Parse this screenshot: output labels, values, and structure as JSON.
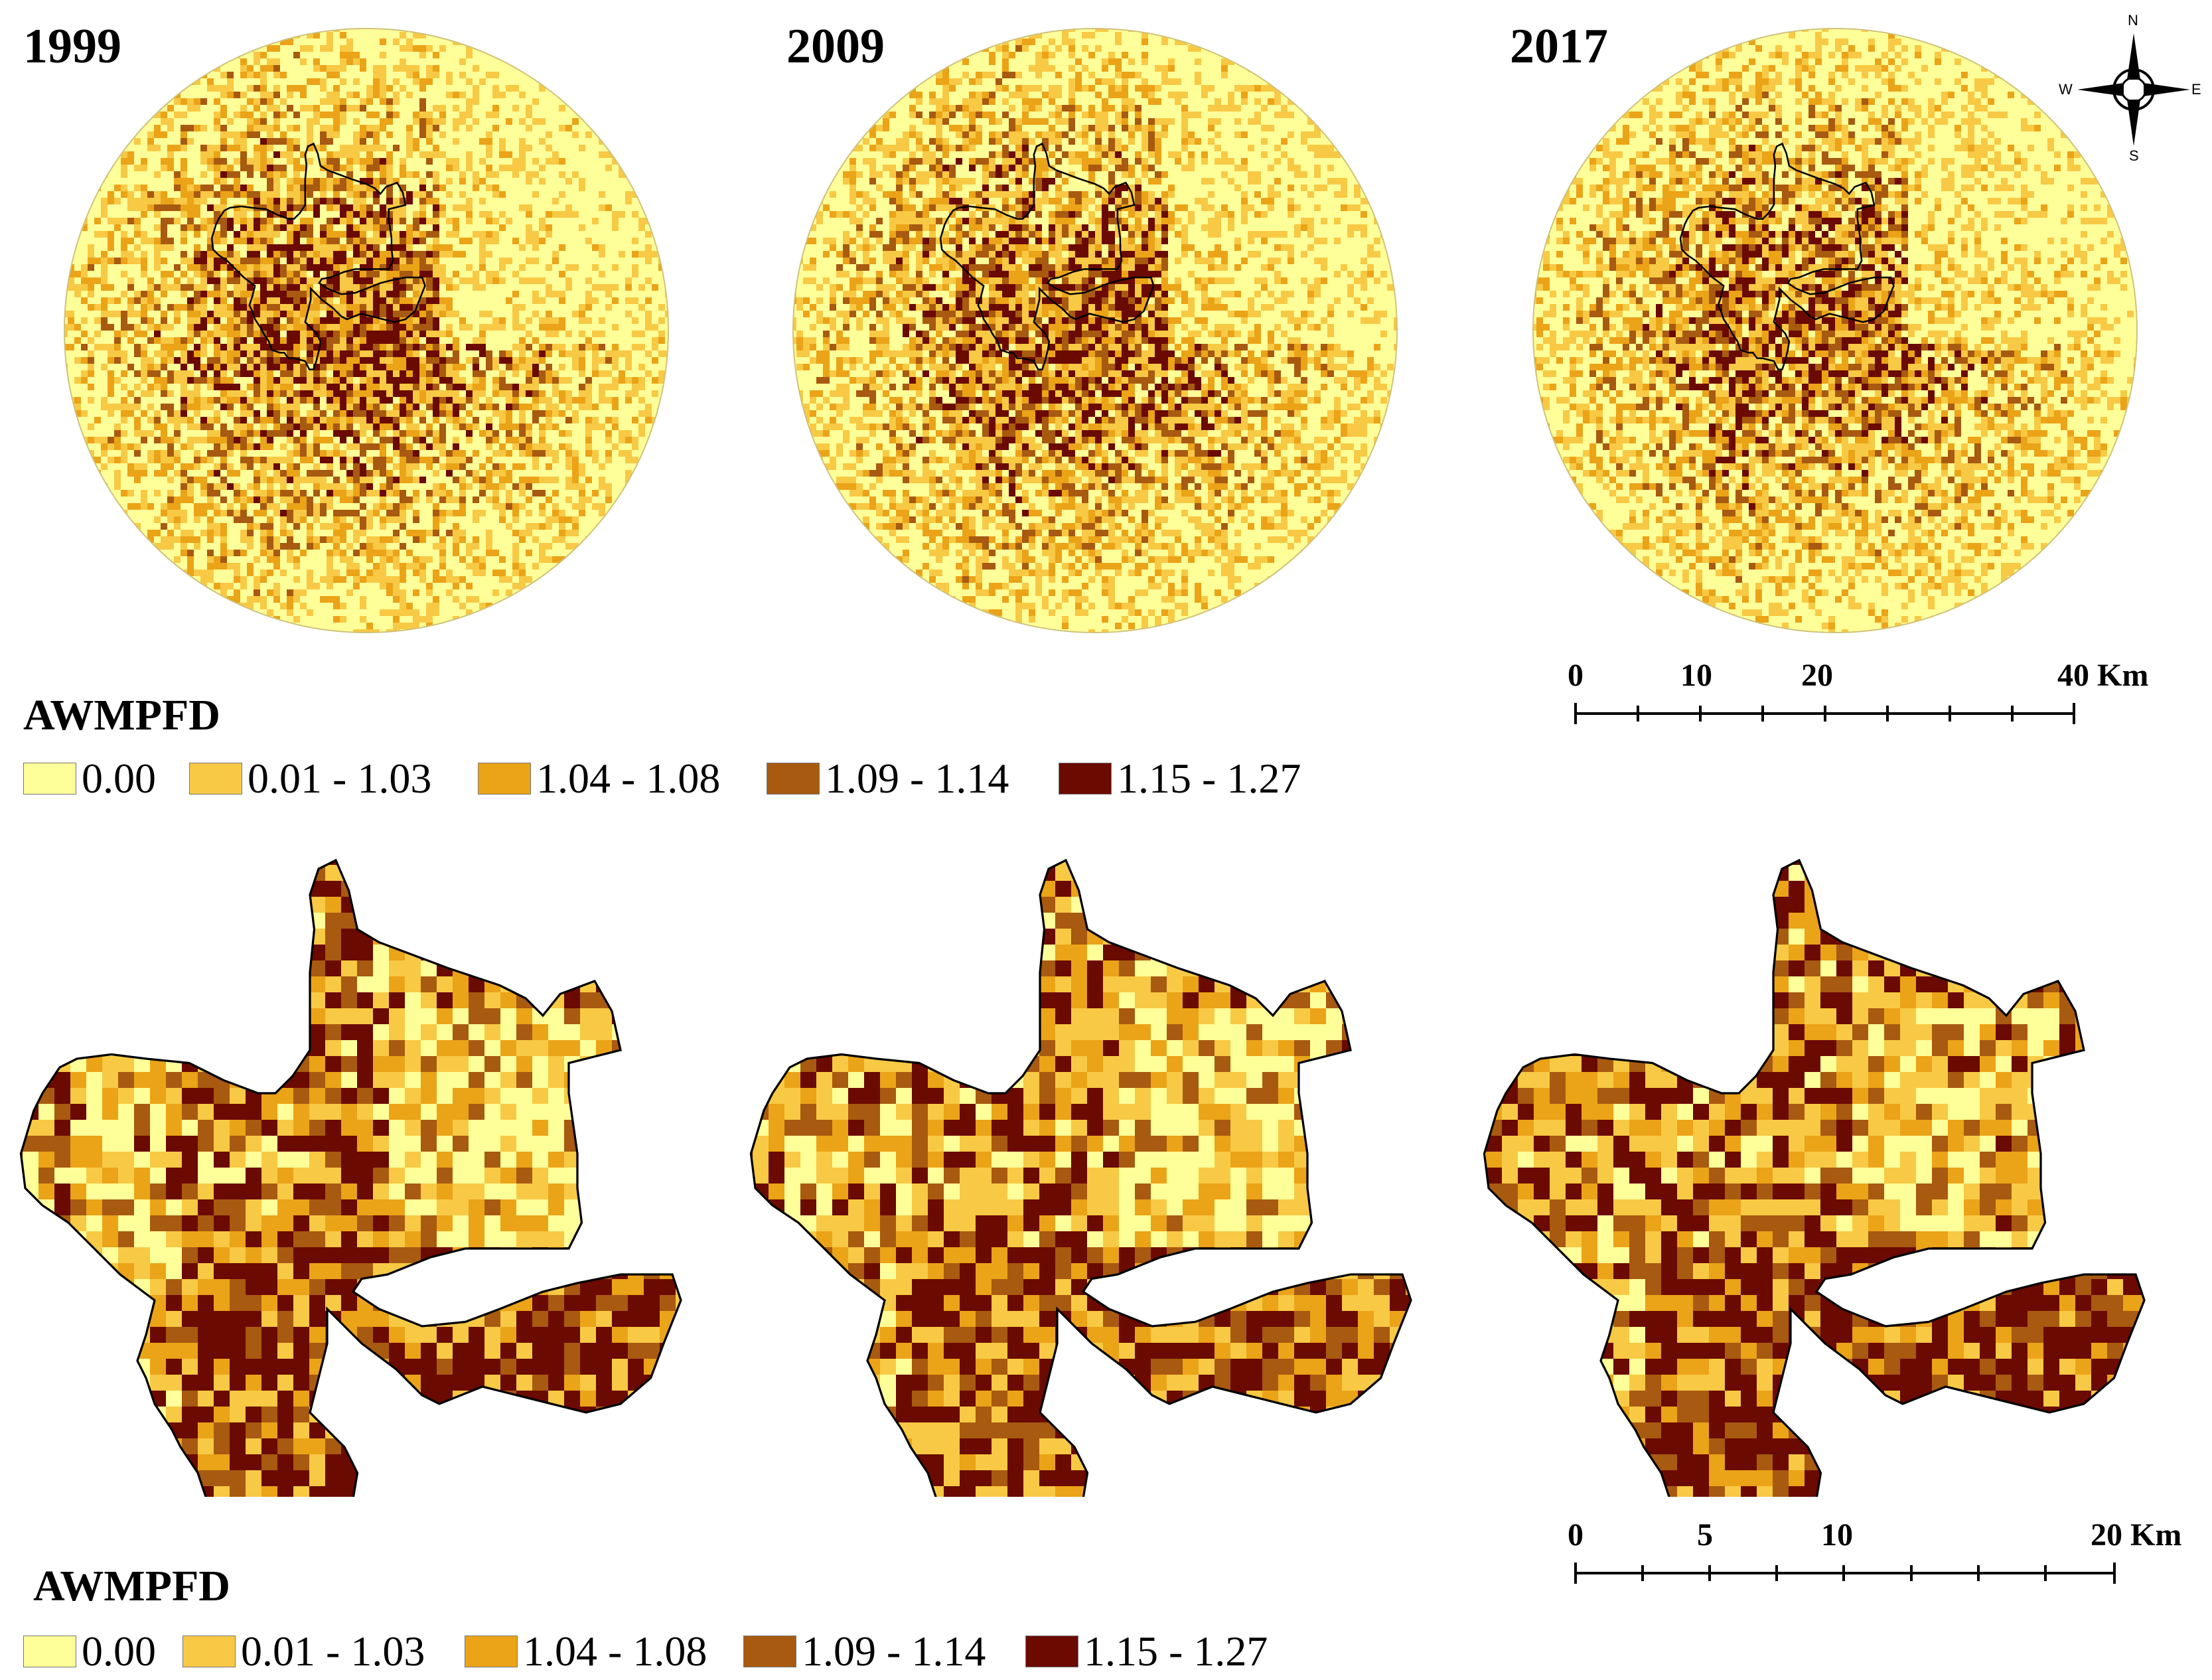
{
  "years": [
    "1999",
    "2009",
    "2017"
  ],
  "legend_top": {
    "title": "AWMPFD",
    "items": [
      {
        "label": "0.00",
        "color": "#ffff99"
      },
      {
        "label": "0.01 - 1.03",
        "color": "#f8c944"
      },
      {
        "label": "1.04 - 1.08",
        "color": "#eba318"
      },
      {
        "label": "1.09 - 1.14",
        "color": "#a85a10"
      },
      {
        "label": "1.15 - 1.27",
        "color": "#6b0a00"
      }
    ]
  },
  "legend_bottom": {
    "title": "AWMPFD",
    "items": [
      {
        "label": "0.00",
        "color": "#ffff99"
      },
      {
        "label": "0.01 - 1.03",
        "color": "#f8c944"
      },
      {
        "label": "1.04 - 1.08",
        "color": "#eba318"
      },
      {
        "label": "1.09 - 1.14",
        "color": "#a85a10"
      },
      {
        "label": "1.15 - 1.27",
        "color": "#6b0a00"
      }
    ]
  },
  "scale_top": {
    "labels": [
      "0",
      "10",
      "20",
      "40 Km"
    ]
  },
  "scale_bottom": {
    "labels": [
      "0",
      "5",
      "10",
      "20 Km"
    ]
  },
  "compass": {
    "n": "N",
    "s": "S",
    "e": "E",
    "w": "W"
  }
}
